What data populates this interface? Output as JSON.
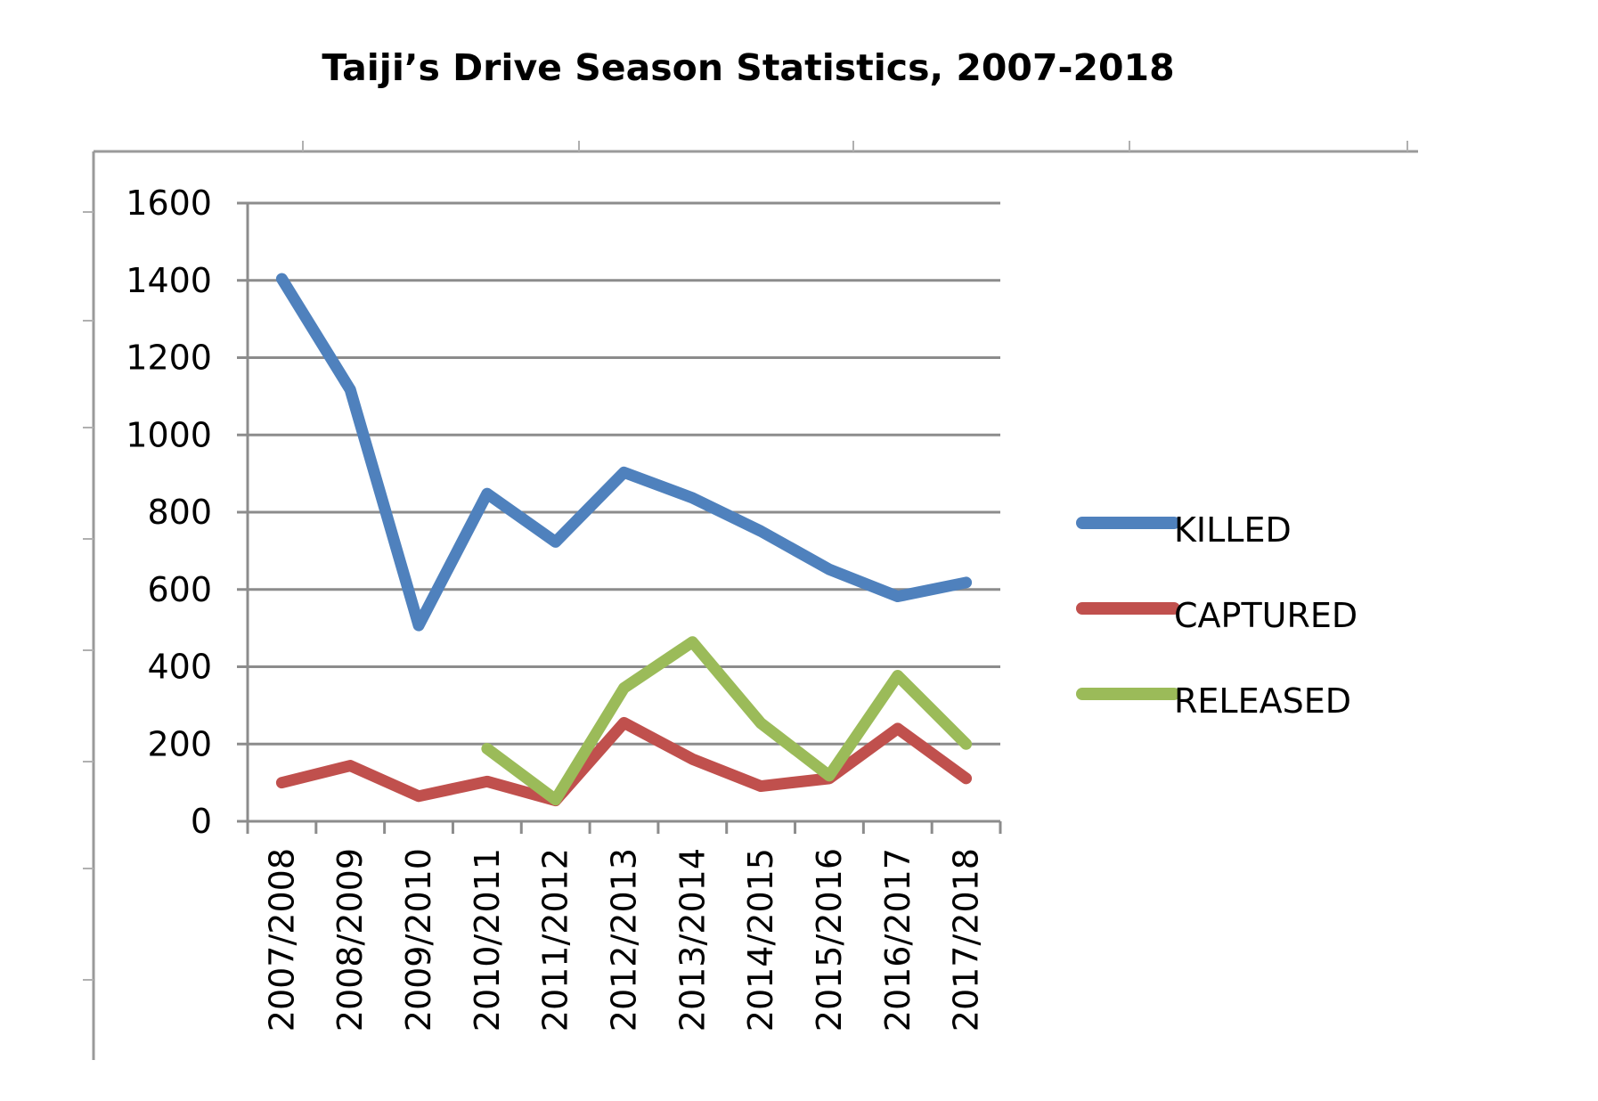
{
  "chart_data": {
    "type": "line",
    "title": "Taiji’s Drive Season Statistics, 2007-2018",
    "xlabel": "",
    "ylabel": "",
    "categories": [
      "2007/2008",
      "2008/2009",
      "2009/2010",
      "2010/2011",
      "2011/2012",
      "2012/2013",
      "2013/2014",
      "2014/2015",
      "2015/2016",
      "2016/2017",
      "2017/2018"
    ],
    "ylim": [
      0,
      1600
    ],
    "yticks": [
      0,
      200,
      400,
      600,
      800,
      1000,
      1200,
      1400,
      1600
    ],
    "grid": true,
    "legend_position": "right",
    "series": [
      {
        "name": "KILLED",
        "color": "#4f81bd",
        "values": [
          1404,
          1117,
          507,
          848,
          723,
          903,
          837,
          751,
          652,
          582,
          618
        ]
      },
      {
        "name": "CAPTURED",
        "color": "#c0504d",
        "values": [
          100,
          144,
          65,
          103,
          54,
          255,
          161,
          91,
          111,
          240,
          111
        ]
      },
      {
        "name": "RELEASED",
        "color": "#9bbb59",
        "values": [
          null,
          null,
          null,
          188,
          56,
          345,
          464,
          254,
          118,
          377,
          200
        ]
      }
    ]
  }
}
